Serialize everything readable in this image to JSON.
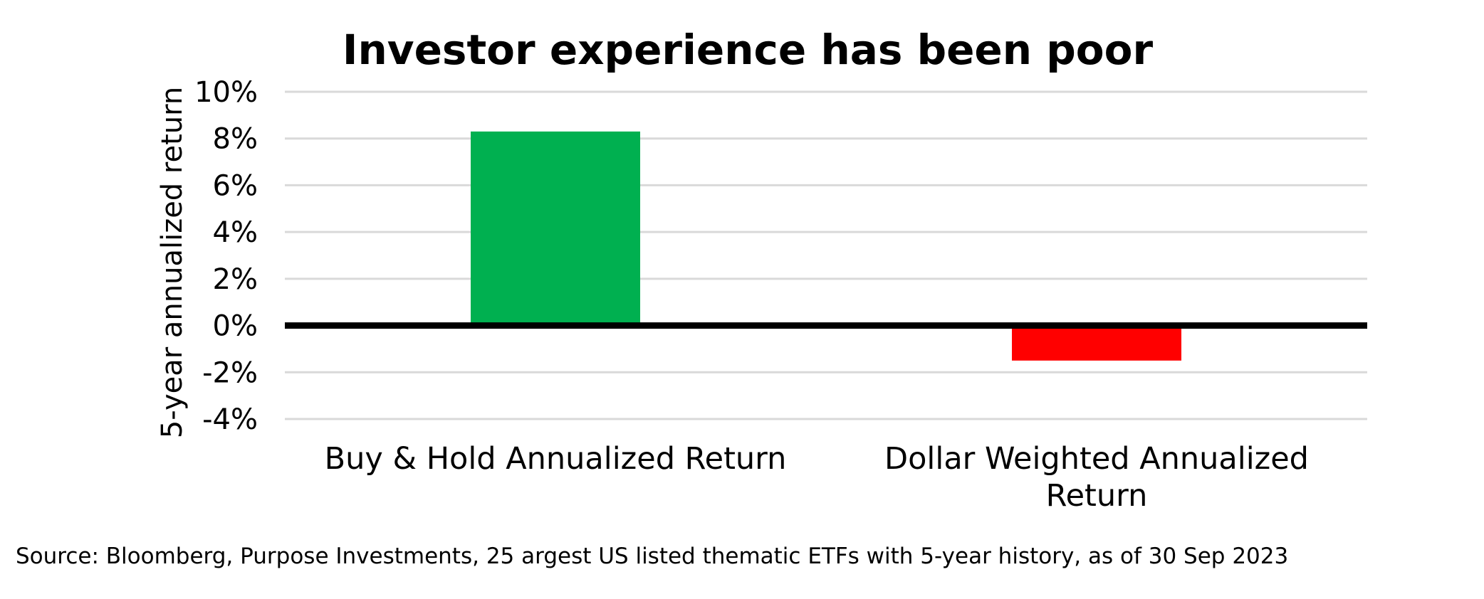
{
  "chart_data": {
    "type": "bar",
    "title": "Investor experience has been poor",
    "ylabel": "5-year annualized return",
    "xlabel": "",
    "categories": [
      [
        "Buy & Hold Annualized Return"
      ],
      [
        "Dollar Weighted Annualized",
        "Return"
      ]
    ],
    "values": [
      8.3,
      -1.5
    ],
    "bar_colors": [
      "#00b050",
      "#ff0000"
    ],
    "ylim": [
      -4,
      10
    ],
    "yticks": [
      10,
      8,
      6,
      4,
      2,
      0,
      -2,
      -4
    ],
    "ytick_labels": [
      "10%",
      "8%",
      "6%",
      "4%",
      "2%",
      "0%",
      "-2%",
      "-4%"
    ],
    "grid": true,
    "gridline_color": "#d9d9d9",
    "zero_line_color": "#000000"
  },
  "footer": {
    "source": "Source: Bloomberg, Purpose Investments, 25 argest US listed thematic ETFs with 5-year history, as of 30 Sep 2023"
  }
}
